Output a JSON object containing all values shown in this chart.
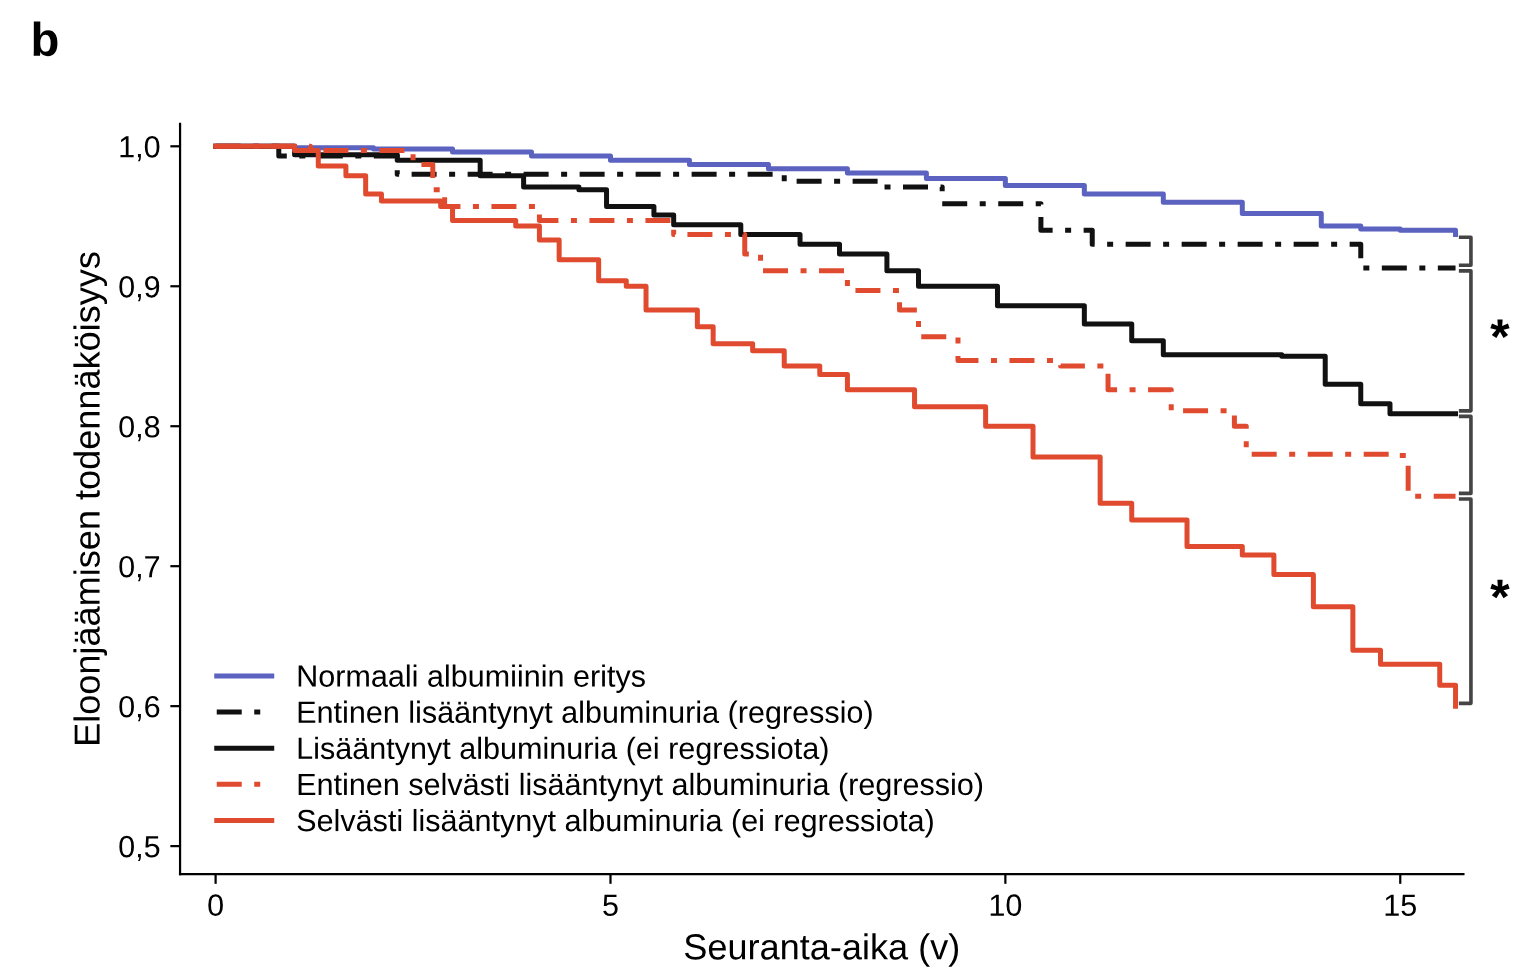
{
  "chart_data": {
    "type": "step",
    "title": "b",
    "xlabel": "Seuranta-aika (v)",
    "ylabel": "Eloonjäämisen todennäköisyys",
    "xlim": [
      -0.45,
      15.8
    ],
    "ylim": [
      0.48,
      1.016
    ],
    "xticks": [
      0,
      5,
      10,
      15
    ],
    "yticks": [
      {
        "value": 0.5,
        "label": "0,5"
      },
      {
        "value": 0.6,
        "label": "0,6"
      },
      {
        "value": 0.7,
        "label": "0,7"
      },
      {
        "value": 0.8,
        "label": "0,8"
      },
      {
        "value": 0.9,
        "label": "0,9"
      },
      {
        "value": 1.0,
        "label": "1,0"
      }
    ],
    "grid": false,
    "legend": "bottom left",
    "marker": "none",
    "annotations": [
      "*",
      "*"
    ],
    "series": [
      {
        "name": "Normaali albumiinin eritys",
        "color": "#5b62c0",
        "line_style": "solid",
        "x": [
          0,
          1,
          2,
          3,
          4,
          5,
          6,
          7,
          8,
          9,
          10,
          11,
          12,
          13,
          14,
          14.5,
          15,
          15.7
        ],
        "values": [
          1.0,
          0.999,
          0.998,
          0.996,
          0.993,
          0.99,
          0.987,
          0.984,
          0.981,
          0.977,
          0.972,
          0.966,
          0.96,
          0.952,
          0.943,
          0.941,
          0.94,
          0.937
        ]
      },
      {
        "name": "Entinen lisääntynyt albuminuria (regressio)",
        "color": "#111111",
        "line_style": "dashed",
        "x": [
          0,
          0.8,
          2.3,
          7.2,
          8.4,
          9.2,
          10.45,
          11.1,
          14.5,
          15.7
        ],
        "values": [
          1.0,
          0.993,
          0.98,
          0.975,
          0.971,
          0.959,
          0.94,
          0.93,
          0.913,
          0.913
        ]
      },
      {
        "name": "Lisääntynyt albuminuria (ei regressiota)",
        "color": "#111111",
        "line_style": "solid",
        "x": [
          0,
          1,
          2.3,
          3.35,
          3.9,
          4.6,
          4.95,
          5.55,
          5.8,
          6.65,
          7.4,
          7.9,
          8.5,
          8.9,
          9.9,
          11,
          11.6,
          12.0,
          13.5,
          14.05,
          14.5,
          14.87,
          15.7
        ],
        "values": [
          1.0,
          0.994,
          0.99,
          0.979,
          0.971,
          0.969,
          0.957,
          0.951,
          0.944,
          0.937,
          0.93,
          0.923,
          0.911,
          0.9,
          0.886,
          0.873,
          0.861,
          0.851,
          0.85,
          0.83,
          0.816,
          0.809,
          0.809
        ]
      },
      {
        "name": "Entinen selvästi lisääntynyt albuminuria (regressio)",
        "color": "#e04a2f",
        "line_style": "dashed",
        "x": [
          0,
          1.2,
          2.5,
          2.75,
          2.9,
          4.1,
          5.8,
          6.7,
          6.9,
          8.0,
          8.66,
          8.9,
          9.4,
          10.7,
          11.3,
          12.1,
          12.9,
          13.05,
          14.9,
          15.1,
          15.7
        ],
        "values": [
          1.0,
          0.997,
          0.987,
          0.969,
          0.957,
          0.947,
          0.937,
          0.923,
          0.911,
          0.897,
          0.883,
          0.864,
          0.847,
          0.843,
          0.826,
          0.811,
          0.8,
          0.78,
          0.779,
          0.75,
          0.75
        ]
      },
      {
        "name": "Selvästi lisääntynyt albuminuria (ei regressiota)",
        "color": "#e04a2f",
        "line_style": "solid",
        "x": [
          0,
          1.0,
          1.3,
          1.65,
          1.9,
          2.1,
          2.85,
          3.0,
          3.8,
          4.1,
          4.35,
          4.85,
          5.2,
          5.45,
          6.1,
          6.3,
          6.8,
          7.2,
          7.65,
          8.0,
          8.85,
          9.75,
          10.35,
          11.2,
          11.6,
          12.3,
          12.8,
          13.0,
          13.4,
          13.9,
          14.4,
          14.75,
          15.25,
          15.5,
          15.7
        ],
        "values": [
          1.0,
          0.997,
          0.986,
          0.979,
          0.966,
          0.961,
          0.957,
          0.947,
          0.943,
          0.933,
          0.919,
          0.904,
          0.9,
          0.883,
          0.871,
          0.859,
          0.854,
          0.843,
          0.837,
          0.826,
          0.814,
          0.8,
          0.778,
          0.745,
          0.733,
          0.714,
          0.714,
          0.708,
          0.694,
          0.671,
          0.64,
          0.63,
          0.63,
          0.615,
          0.6
        ]
      }
    ]
  }
}
